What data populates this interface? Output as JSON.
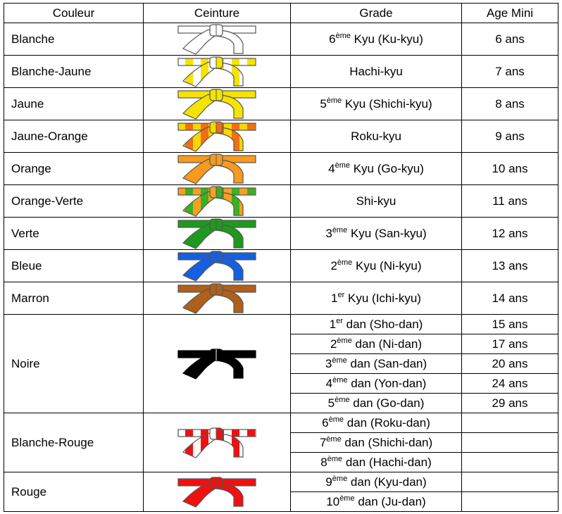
{
  "headers": {
    "couleur": "Couleur",
    "ceinture": "Ceinture",
    "grade": "Grade",
    "age": "Age Mini"
  },
  "belts": [
    {
      "couleur": "Blanche",
      "colors": [
        "#ffffff",
        "#ffffff"
      ],
      "grades": [
        {
          "n": "6",
          "sup": "ème",
          "text": " Kyu (Ku-kyu)",
          "age": "6 ans"
        }
      ]
    },
    {
      "couleur": "Blanche-Jaune",
      "colors": [
        "#ffffff",
        "#f5e400"
      ],
      "grades": [
        {
          "n": "",
          "sup": "",
          "text": "Hachi-kyu",
          "age": "7 ans"
        }
      ]
    },
    {
      "couleur": "Jaune",
      "colors": [
        "#f5e400",
        "#f5e400"
      ],
      "grades": [
        {
          "n": "5",
          "sup": "ème",
          "text": " Kyu (Shichi-kyu)",
          "age": "8 ans"
        }
      ]
    },
    {
      "couleur": "Jaune-Orange",
      "colors": [
        "#f7d800",
        "#f07010"
      ],
      "grades": [
        {
          "n": "",
          "sup": "",
          "text": "Roku-kyu",
          "age": "9 ans"
        }
      ]
    },
    {
      "couleur": "Orange",
      "colors": [
        "#f79a1e",
        "#f79a1e"
      ],
      "grades": [
        {
          "n": "4",
          "sup": "ème",
          "text": " Kyu (Go-kyu)",
          "age": "10 ans"
        }
      ]
    },
    {
      "couleur": "Orange-Verte",
      "colors": [
        "#f7a020",
        "#3cb021"
      ],
      "grades": [
        {
          "n": "",
          "sup": "",
          "text": "Shi-kyu",
          "age": "11 ans"
        }
      ]
    },
    {
      "couleur": "Verte",
      "colors": [
        "#1d9a1d",
        "#1d9a1d"
      ],
      "grades": [
        {
          "n": "3",
          "sup": "ème",
          "text": " Kyu (San-kyu)",
          "age": "12 ans"
        }
      ]
    },
    {
      "couleur": "Bleue",
      "colors": [
        "#1560e0",
        "#1560e0"
      ],
      "grades": [
        {
          "n": "2",
          "sup": "ème",
          "text": " Kyu (Ni-kyu)",
          "age": "13 ans"
        }
      ]
    },
    {
      "couleur": "Marron",
      "colors": [
        "#b0601a",
        "#b0601a"
      ],
      "grades": [
        {
          "n": "1",
          "sup": "er",
          "text": " Kyu (Ichi-kyu)",
          "age": "14 ans"
        }
      ]
    },
    {
      "couleur": "Noire",
      "colors": [
        "#000000",
        "#000000"
      ],
      "grades": [
        {
          "n": "1",
          "sup": "er",
          "text": " dan (Sho-dan)",
          "age": "15 ans"
        },
        {
          "n": "2",
          "sup": "ème",
          "text": " dan (Ni-dan)",
          "age": "17 ans"
        },
        {
          "n": "3",
          "sup": "ème",
          "text": " dan (San-dan)",
          "age": "20 ans"
        },
        {
          "n": "4",
          "sup": "ème",
          "text": " dan (Yon-dan)",
          "age": "24 ans"
        },
        {
          "n": "5",
          "sup": "ème",
          "text": " dan (Go-dan)",
          "age": "29 ans"
        }
      ]
    },
    {
      "couleur": "Blanche-Rouge",
      "colors": [
        "#ffffff",
        "#f01010"
      ],
      "grades": [
        {
          "n": "6",
          "sup": "ème",
          "text": " dan (Roku-dan)",
          "age": ""
        },
        {
          "n": "7",
          "sup": "ème",
          "text": " dan (Shichi-dan)",
          "age": ""
        },
        {
          "n": "8",
          "sup": "ème",
          "text": " dan (Hachi-dan)",
          "age": ""
        }
      ]
    },
    {
      "couleur": "Rouge",
      "colors": [
        "#f01010",
        "#f01010"
      ],
      "grades": [
        {
          "n": "9",
          "sup": "ème",
          "text": " dan (Kyu-dan)",
          "age": ""
        },
        {
          "n": "10",
          "sup": "ème",
          "text": " dan (Ju-dan)",
          "age": ""
        }
      ]
    }
  ]
}
